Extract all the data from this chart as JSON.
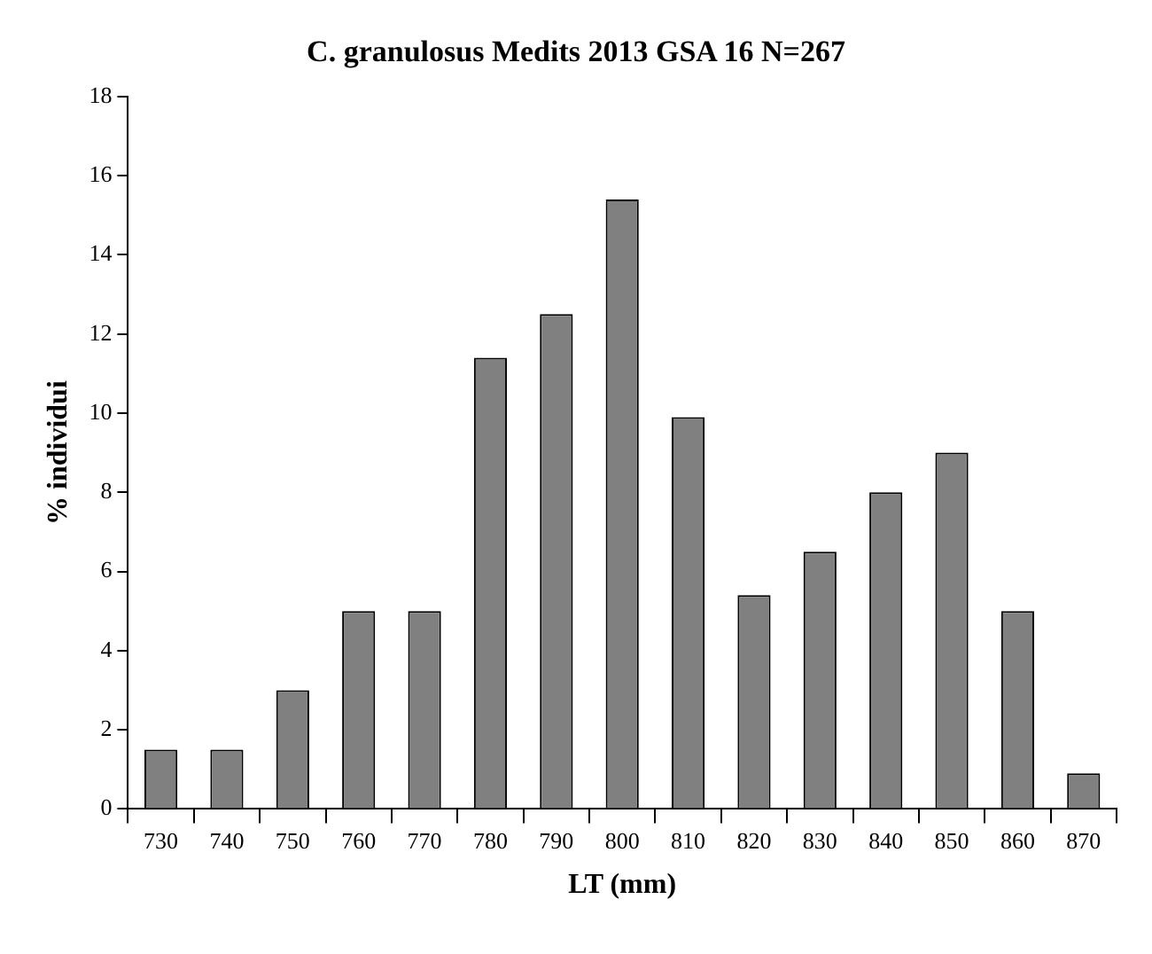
{
  "chart_data": {
    "type": "bar",
    "title": "C. granulosus Medits 2013 GSA 16 N=267",
    "xlabel": "LT (mm)",
    "ylabel": "% individui",
    "categories": [
      "730",
      "740",
      "750",
      "760",
      "770",
      "780",
      "790",
      "800",
      "810",
      "820",
      "830",
      "840",
      "850",
      "860",
      "870"
    ],
    "values": [
      1.5,
      1.5,
      3.0,
      5.0,
      5.0,
      11.4,
      12.5,
      15.4,
      9.9,
      5.4,
      6.5,
      8.0,
      9.0,
      5.0,
      0.9
    ],
    "color": "#808080",
    "ylim": [
      0,
      18
    ],
    "yticks": [
      0,
      2,
      4,
      6,
      8,
      10,
      12,
      14,
      16,
      18
    ],
    "grid": false,
    "legend": false
  }
}
